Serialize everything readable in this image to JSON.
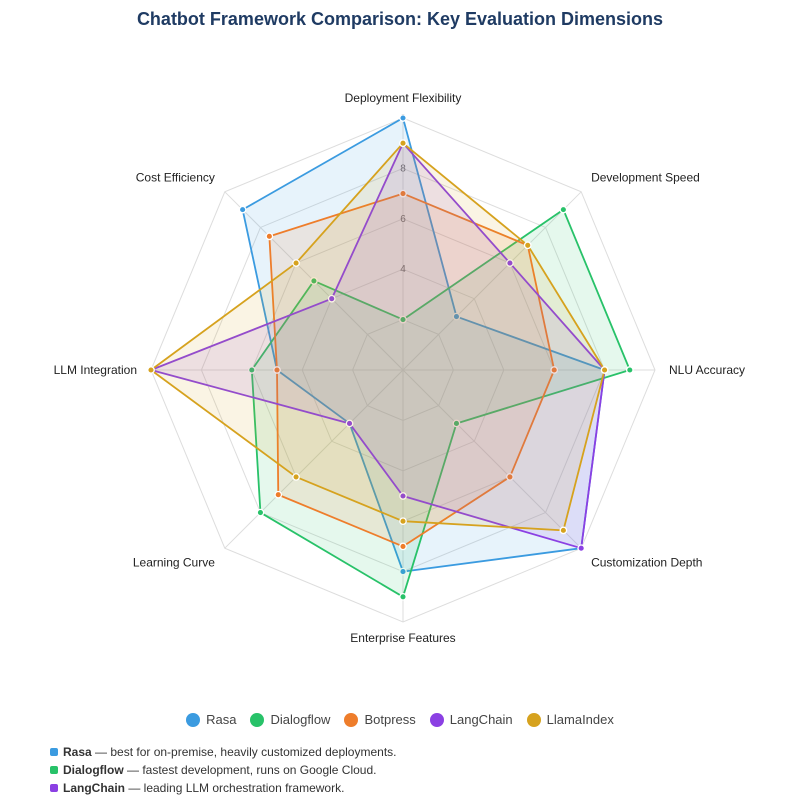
{
  "chart_data": {
    "type": "radar",
    "title": "Chatbot Framework Comparison: Key Evaluation Dimensions",
    "axes": [
      "Deployment Flexibility",
      "Development Speed",
      "NLU Accuracy",
      "Customization Depth",
      "Enterprise Features",
      "Learning Curve",
      "LLM Integration",
      "Cost Efficiency"
    ],
    "rlim": [
      0,
      10
    ],
    "ticks": [
      "4",
      "6",
      "8"
    ],
    "top_tick_label": "0",
    "grid": true,
    "legend_position": "bottom",
    "series": [
      {
        "name": "Rasa",
        "color": "#3b9be0",
        "values": [
          10,
          3,
          8,
          10,
          8,
          3,
          5,
          9
        ]
      },
      {
        "name": "Dialogflow",
        "color": "#28c269",
        "values": [
          2,
          9,
          9,
          3,
          9,
          8,
          6,
          5
        ]
      },
      {
        "name": "Botpress",
        "color": "#ee7d2b",
        "values": [
          7,
          7,
          6,
          6,
          7,
          7,
          5,
          7.5
        ]
      },
      {
        "name": "LangChain",
        "color": "#8b40e3",
        "values": [
          9,
          6,
          8,
          10,
          5,
          3,
          10,
          4
        ]
      },
      {
        "name": "LlamaIndex",
        "color": "#d6a21e",
        "values": [
          9,
          7,
          8,
          9,
          6,
          6,
          10,
          6
        ]
      }
    ]
  },
  "notes": [
    {
      "name": "Rasa",
      "text": " — best for on-premise, heavily customized deployments.",
      "color": "#3b9be0"
    },
    {
      "name": "Dialogflow",
      "text": " — fastest development, runs on Google Cloud.",
      "color": "#28c269"
    },
    {
      "name": "LangChain",
      "text": " — leading LLM orchestration framework.",
      "color": "#8b40e3"
    }
  ]
}
